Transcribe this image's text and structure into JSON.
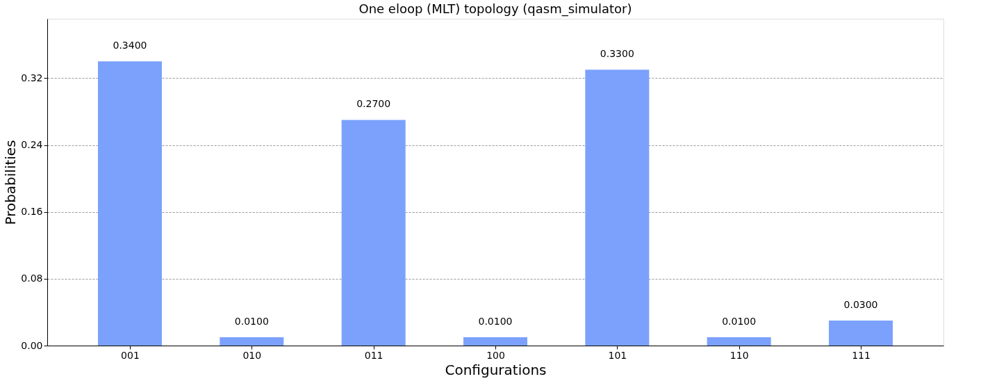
{
  "chart_data": {
    "type": "bar",
    "title": "One eloop (MLT) topology (qasm_simulator)",
    "xlabel": "Configurations",
    "ylabel": "Probabilities",
    "categories": [
      "001",
      "010",
      "011",
      "100",
      "101",
      "110",
      "111"
    ],
    "values": [
      0.34,
      0.01,
      0.27,
      0.01,
      0.33,
      0.01,
      0.03
    ],
    "value_labels": [
      "0.3400",
      "0.0100",
      "0.2700",
      "0.0100",
      "0.3300",
      "0.0100",
      "0.0300"
    ],
    "color": "#7ba1fc",
    "ylim": [
      0,
      0.391
    ],
    "yticks": [
      {
        "value": 0,
        "label": "0.00"
      },
      0.08,
      0.16,
      0.24,
      0.32
    ],
    "grid": "y",
    "line_style": "dashed"
  }
}
